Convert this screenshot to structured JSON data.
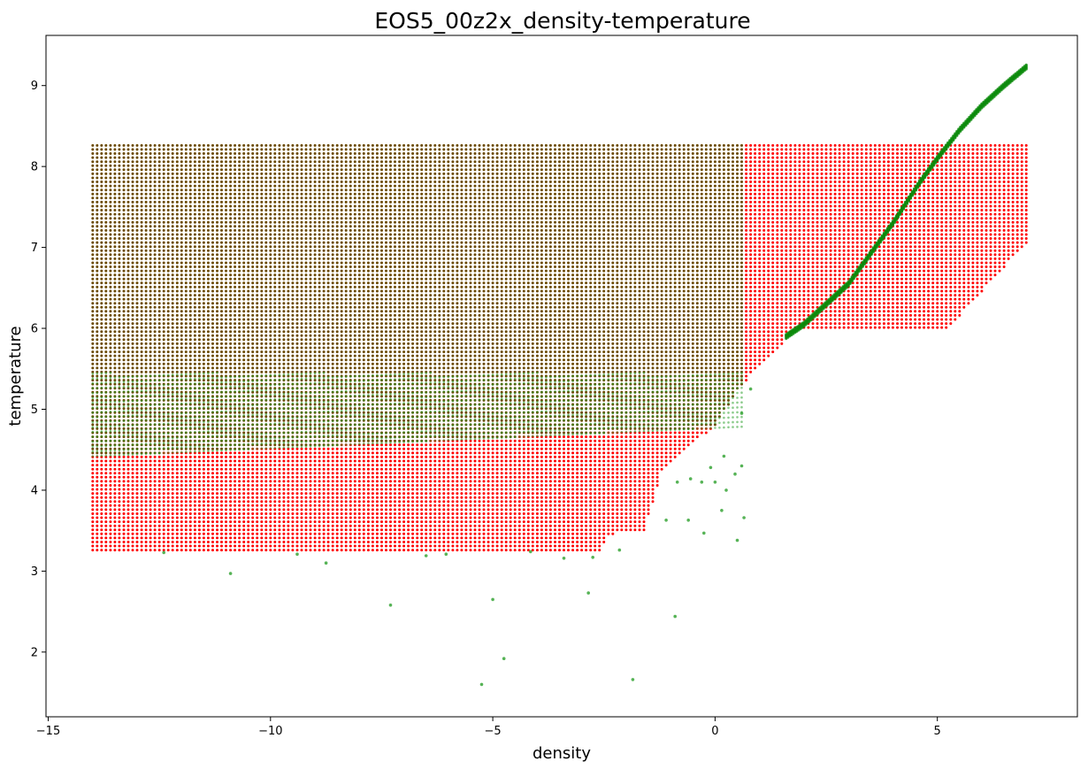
{
  "chart_data": {
    "type": "scatter",
    "title": "EOS5_00z2x_density-temperature",
    "xlabel": "density",
    "ylabel": "temperature",
    "xlim": [
      -15.05,
      8.15
    ],
    "ylim": [
      1.2,
      9.62
    ],
    "xticks": [
      -15,
      -10,
      -5,
      0,
      5
    ],
    "yticks": [
      2,
      3,
      4,
      5,
      6,
      7,
      8,
      9
    ],
    "grid": false,
    "legend": "none",
    "colors": {
      "red_series": "#ff0000",
      "green_series": "#2ca02c",
      "overlap": "#6b4a00"
    },
    "series": [
      {
        "color": "#ff0000",
        "description_points": {
          "grid_x_range": [
            -14.0,
            7.0
          ],
          "grid_x_step": 0.1,
          "grid_y_range": [
            3.26,
            8.3
          ],
          "lower_boundary": [
            [
              -14.0,
              3.26
            ],
            [
              -2.6,
              3.26
            ],
            [
              -2.4,
              3.45
            ],
            [
              -1.6,
              3.5
            ],
            [
              -1.4,
              3.85
            ],
            [
              -1.2,
              4.25
            ],
            [
              0.0,
              4.8
            ],
            [
              0.6,
              5.3
            ],
            [
              1.8,
              5.98
            ],
            [
              5.2,
              5.98
            ],
            [
              7.0,
              7.05
            ]
          ],
          "upper_boundary": 8.3
        }
      },
      {
        "color": "#2ca02c",
        "dense_region": {
          "lower_y_at_left": 4.42,
          "upper_y": 8.3,
          "x_range": [
            -14.0,
            0.6
          ]
        },
        "ridge": [
          [
            1.6,
            5.9
          ],
          [
            2.0,
            6.05
          ],
          [
            3.0,
            6.55
          ],
          [
            4.0,
            7.3
          ],
          [
            4.6,
            7.8
          ],
          [
            5.0,
            8.1
          ],
          [
            5.5,
            8.45
          ],
          [
            6.0,
            8.75
          ],
          [
            6.5,
            9.0
          ],
          [
            7.0,
            9.23
          ]
        ],
        "outliers": [
          [
            -12.4,
            3.23
          ],
          [
            -10.9,
            2.97
          ],
          [
            -9.4,
            3.21
          ],
          [
            -8.75,
            3.1
          ],
          [
            -7.3,
            2.58
          ],
          [
            -6.5,
            3.19
          ],
          [
            -6.05,
            3.21
          ],
          [
            -5.25,
            1.6
          ],
          [
            -5.0,
            2.65
          ],
          [
            -4.75,
            1.92
          ],
          [
            -4.15,
            3.24
          ],
          [
            -3.4,
            3.16
          ],
          [
            -2.85,
            2.73
          ],
          [
            -2.75,
            3.17
          ],
          [
            -2.15,
            3.26
          ],
          [
            -1.85,
            1.66
          ],
          [
            -1.1,
            3.63
          ],
          [
            -0.9,
            2.44
          ],
          [
            -0.6,
            3.63
          ],
          [
            -0.25,
            3.47
          ],
          [
            0.15,
            3.75
          ],
          [
            0.5,
            3.38
          ],
          [
            0.65,
            3.66
          ],
          [
            0.6,
            4.3
          ],
          [
            0.25,
            4.0
          ],
          [
            0.0,
            4.1
          ],
          [
            -0.3,
            4.1
          ],
          [
            -0.55,
            4.14
          ],
          [
            -0.85,
            4.1
          ],
          [
            0.2,
            4.42
          ],
          [
            0.45,
            4.2
          ],
          [
            0.6,
            4.95
          ],
          [
            0.8,
            5.25
          ],
          [
            -0.1,
            4.28
          ]
        ]
      }
    ]
  }
}
